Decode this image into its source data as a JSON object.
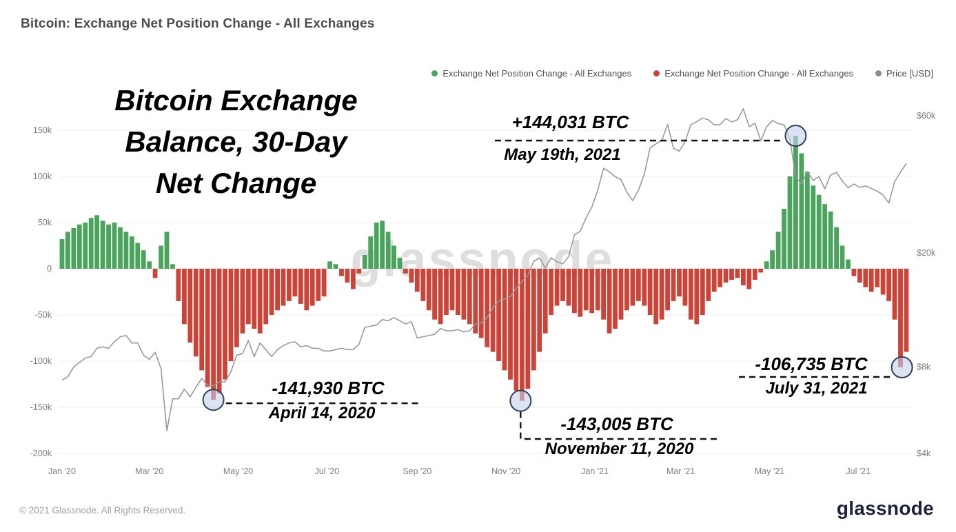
{
  "header": {
    "title": "Bitcoin: Exchange Net Position Change - All Exchanges"
  },
  "legend": [
    {
      "label": "Exchange Net Position Change - All Exchanges",
      "color": "#4aa45c"
    },
    {
      "label": "Exchange Net Position Change - All Exchanges",
      "color": "#cc4437"
    },
    {
      "label": "Price [USD]",
      "color": "#8c8c8c"
    }
  ],
  "overlay": {
    "lines": [
      "Bitcoin Exchange",
      "Balance, 30-Day",
      "Net Change"
    ]
  },
  "watermark": "glassnode",
  "footer": {
    "copyright": "© 2021 Glassnode. All Rights Reserved.",
    "logo_text": "glassnode"
  },
  "chart_data": {
    "type": "bar",
    "title": "Bitcoin: Exchange Net Position Change - All Exchanges",
    "start_date": "2020-01-01",
    "step_days": 4,
    "x_axis": {
      "ticks": [
        "Jan '20",
        "Mar '20",
        "May '20",
        "Jul '20",
        "Sep '20",
        "Nov '20",
        "Jan '21",
        "Mar '21",
        "May '21",
        "Jul '21"
      ],
      "tick_day_offsets": [
        0,
        60,
        121,
        182,
        244,
        305,
        366,
        425,
        486,
        547
      ],
      "total_days": 584
    },
    "left_axis": {
      "units": "BTC",
      "ticks": [
        "150k",
        "100k",
        "50k",
        "0",
        "-50k",
        "-100k",
        "-150k",
        "-200k"
      ],
      "tick_values": [
        150000,
        100000,
        50000,
        0,
        -50000,
        -100000,
        -150000,
        -200000
      ],
      "range": [
        -210000,
        200000
      ],
      "scale": "linear",
      "grid": true
    },
    "right_axis": {
      "units": "USD",
      "ticks": [
        "$60k",
        "$20k",
        "$8k",
        "$4k"
      ],
      "tick_values": [
        60000,
        20000,
        8000,
        4000
      ],
      "scale": "log"
    },
    "series": [
      {
        "name": "Exchange Net Position Change - All Exchanges",
        "type": "bar",
        "units": "BTC",
        "positive_color": "#4aa45c",
        "negative_color": "#cc4437",
        "values": [
          32000,
          40000,
          44000,
          48000,
          50000,
          55000,
          58000,
          52000,
          48000,
          50000,
          45000,
          40000,
          35000,
          28000,
          20000,
          8000,
          -10000,
          25000,
          40000,
          5000,
          -35000,
          -60000,
          -80000,
          -95000,
          -110000,
          -128000,
          -141930,
          -135000,
          -120000,
          -100000,
          -85000,
          -70000,
          -60000,
          -65000,
          -70000,
          -60000,
          -50000,
          -45000,
          -40000,
          -35000,
          -30000,
          -38000,
          -45000,
          -40000,
          -35000,
          -30000,
          8000,
          5000,
          -8000,
          -15000,
          -22000,
          -5000,
          15000,
          35000,
          50000,
          52000,
          40000,
          25000,
          12000,
          -5000,
          -15000,
          -25000,
          -35000,
          -45000,
          -55000,
          -60000,
          -50000,
          -45000,
          -50000,
          -55000,
          -60000,
          -70000,
          -75000,
          -85000,
          -90000,
          -100000,
          -110000,
          -120000,
          -132000,
          -143005,
          -130000,
          -110000,
          -90000,
          -70000,
          -50000,
          -40000,
          -35000,
          -40000,
          -48000,
          -52000,
          -45000,
          -48000,
          -45000,
          -55000,
          -70000,
          -65000,
          -55000,
          -45000,
          -40000,
          -35000,
          -40000,
          -50000,
          -60000,
          -55000,
          -45000,
          -35000,
          -30000,
          -40000,
          -55000,
          -60000,
          -50000,
          -35000,
          -25000,
          -20000,
          -15000,
          -12000,
          -10000,
          -18000,
          -22000,
          -12000,
          -4000,
          8000,
          20000,
          40000,
          65000,
          100000,
          144031,
          125000,
          105000,
          90000,
          80000,
          70000,
          62000,
          45000,
          25000,
          10000,
          -8000,
          -15000,
          -20000,
          -25000,
          -20000,
          -28000,
          -35000,
          -55000,
          -106735,
          -90000
        ]
      },
      {
        "name": "Price [USD]",
        "type": "line",
        "units": "USD",
        "color": "#999999",
        "values": [
          7200,
          7400,
          8000,
          8300,
          8600,
          8700,
          9300,
          9400,
          9300,
          9800,
          10200,
          10300,
          9700,
          9700,
          8800,
          8500,
          9000,
          7900,
          4800,
          6200,
          6200,
          6700,
          6300,
          6800,
          7300,
          6900,
          6900,
          7100,
          7100,
          7700,
          8800,
          8900,
          9900,
          8700,
          9700,
          9200,
          8700,
          9200,
          9500,
          9700,
          9800,
          9400,
          9500,
          9300,
          9300,
          9100,
          9100,
          9200,
          9300,
          9200,
          9200,
          9600,
          11000,
          11100,
          11200,
          11700,
          11600,
          11900,
          11600,
          11300,
          11500,
          10100,
          10200,
          10300,
          10400,
          10900,
          10700,
          10700,
          10800,
          10600,
          10700,
          11300,
          11400,
          11900,
          12900,
          13600,
          13800,
          14100,
          15000,
          15900,
          16700,
          18700,
          19200,
          17700,
          19200,
          18600,
          18300,
          19400,
          23100,
          23800,
          26500,
          28900,
          33000,
          39400,
          38300,
          36800,
          36000,
          32500,
          30400,
          33100,
          37600,
          46400,
          47900,
          49200,
          56000,
          46300,
          45200,
          48800,
          55900,
          57300,
          58900,
          58100,
          55800,
          55900,
          58700,
          57100,
          58100,
          63500,
          55000,
          56500,
          49100,
          54900,
          57800,
          56400,
          55800,
          49900,
          36700,
          34700,
          38400,
          35700,
          36900,
          33400,
          37300,
          38100,
          35600,
          33700,
          34700,
          33800,
          34200,
          33500,
          32800,
          31800,
          29800,
          35400,
          38200,
          41000
        ]
      }
    ],
    "annotations": [
      {
        "id": "may-2021-peak",
        "value_label": "+144,031 BTC",
        "date_label": "May 19th, 2021",
        "date": "2021-05-19",
        "value": 144031
      },
      {
        "id": "apr-2020-low",
        "value_label": "-141,930 BTC",
        "date_label": "April 14, 2020",
        "date": "2020-04-14",
        "value": -141930
      },
      {
        "id": "nov-2020-low",
        "value_label": "-143,005 BTC",
        "date_label": "November 11, 2020",
        "date": "2020-11-11",
        "value": -143005
      },
      {
        "id": "jul-2021-low",
        "value_label": "-106,735 BTC",
        "date_label": "July 31, 2021",
        "date": "2021-07-31",
        "value": -106735
      }
    ]
  }
}
